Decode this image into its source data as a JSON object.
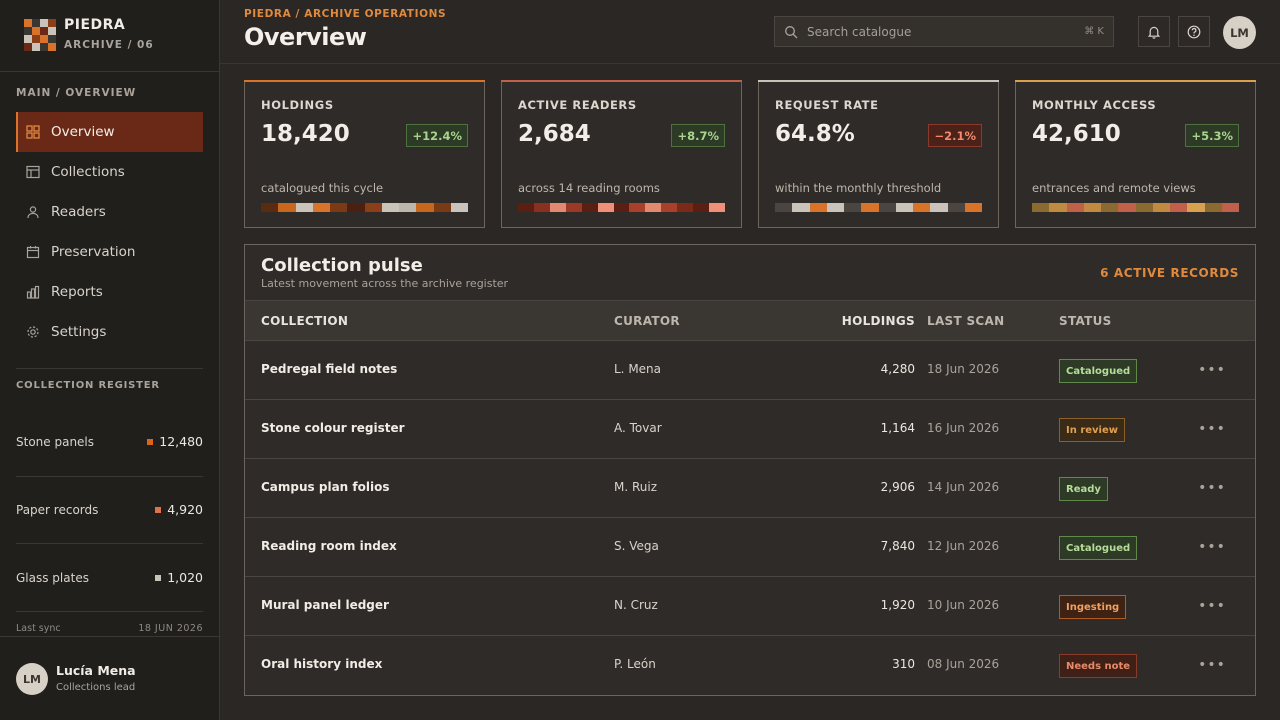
{
  "brand": {
    "name": "PIEDRA",
    "sub": "ARCHIVE / 06"
  },
  "sidebar": {
    "section_label": "MAIN / OVERVIEW",
    "items": [
      {
        "label": "Overview",
        "icon": "grid-icon",
        "active": true
      },
      {
        "label": "Collections",
        "icon": "table-icon"
      },
      {
        "label": "Readers",
        "icon": "user-icon"
      },
      {
        "label": "Preservation",
        "icon": "calendar-icon"
      },
      {
        "label": "Reports",
        "icon": "bar-chart-icon"
      },
      {
        "label": "Settings",
        "icon": "gear-icon"
      }
    ],
    "register_label": "COLLECTION REGISTER",
    "register": [
      {
        "name": "Stone panels",
        "value": "12,480",
        "color": "#d9661c"
      },
      {
        "name": "Paper records",
        "value": "4,920",
        "color": "#e0704a"
      },
      {
        "name": "Glass plates",
        "value": "1,020",
        "color": "#c9c3ba"
      }
    ],
    "sync_label": "Last sync",
    "sync_date": "18 JUN 2026",
    "user": {
      "initials": "LM",
      "name": "Lucía Mena",
      "role": "Collections lead"
    }
  },
  "header": {
    "breadcrumb": "PIEDRA / ARCHIVE OPERATIONS",
    "title": "Overview",
    "search_placeholder": "Search catalogue",
    "search_shortcut": "⌘ K",
    "avatar_initials": "LM"
  },
  "kpis": [
    {
      "label": "HOLDINGS",
      "value": "18,420",
      "change": "+12.4%",
      "trend": "up",
      "sub": "catalogued this cycle",
      "accent": "#d9732a",
      "strip": [
        "#5a2a12",
        "#c8661e",
        "#c9c3ba",
        "#d9732a",
        "#7a3a16",
        "#4a2010",
        "#8a3f18",
        "#c9c3ba",
        "#bdb6ad",
        "#c8661e",
        "#7a3a16",
        "#c9c3ba"
      ]
    },
    {
      "label": "ACTIVE READERS",
      "value": "2,684",
      "change": "+8.7%",
      "trend": "up",
      "sub": "across 14 reading rooms",
      "accent": "#c0604a",
      "strip": [
        "#5a1e12",
        "#8a3020",
        "#e08a72",
        "#9a3a26",
        "#5a1e12",
        "#f0907a",
        "#5a1e12",
        "#a8402a",
        "#e08a72",
        "#a8402a",
        "#7a2a18",
        "#5a1e12",
        "#f0907a"
      ]
    },
    {
      "label": "REQUEST RATE",
      "value": "64.8%",
      "change": "−2.1%",
      "trend": "down",
      "sub": "within the monthly threshold",
      "accent": "#c9c3ba",
      "strip": [
        "#4a4540",
        "#c9c3ba",
        "#d9732a",
        "#c9c3ba",
        "#4a4540",
        "#d9732a",
        "#4a4540",
        "#c9c3ba",
        "#d9732a",
        "#c9c3ba",
        "#4a4540",
        "#d9732a"
      ]
    },
    {
      "label": "MONTHLY ACCESS",
      "value": "42,610",
      "change": "+5.3%",
      "trend": "up",
      "sub": "entrances and remote views",
      "accent": "#d9a050",
      "strip": [
        "#8a6a30",
        "#c08a40",
        "#c0604a",
        "#c08a40",
        "#8a6a30",
        "#c0604a",
        "#8a6a30",
        "#c08a40",
        "#c0604a",
        "#d9a050",
        "#8a6a30",
        "#c0604a"
      ]
    }
  ],
  "panel": {
    "title": "Collection pulse",
    "subtitle": "Latest movement across the archive register",
    "count_label": "6 ACTIVE RECORDS",
    "columns": [
      "COLLECTION",
      "CURATOR",
      "HOLDINGS",
      "LAST SCAN",
      "STATUS"
    ],
    "rows": [
      {
        "collection": "Pedregal field notes",
        "curator": "L. Mena",
        "holdings": "4,280",
        "last_scan": "18 Jun 2026",
        "status": "Catalogued",
        "tone": "green"
      },
      {
        "collection": "Stone colour register",
        "curator": "A. Tovar",
        "holdings": "1,164",
        "last_scan": "16 Jun 2026",
        "status": "In review",
        "tone": "amber"
      },
      {
        "collection": "Campus plan folios",
        "curator": "M. Ruiz",
        "holdings": "2,906",
        "last_scan": "14 Jun 2026",
        "status": "Ready",
        "tone": "green"
      },
      {
        "collection": "Reading room index",
        "curator": "S. Vega",
        "holdings": "7,840",
        "last_scan": "12 Jun 2026",
        "status": "Catalogued",
        "tone": "green"
      },
      {
        "collection": "Mural panel ledger",
        "curator": "N. Cruz",
        "holdings": "1,920",
        "last_scan": "10 Jun 2026",
        "status": "Ingesting",
        "tone": "orange"
      },
      {
        "collection": "Oral history index",
        "curator": "P. León",
        "holdings": "310",
        "last_scan": "08 Jun 2026",
        "status": "Needs note",
        "tone": "red"
      }
    ]
  }
}
